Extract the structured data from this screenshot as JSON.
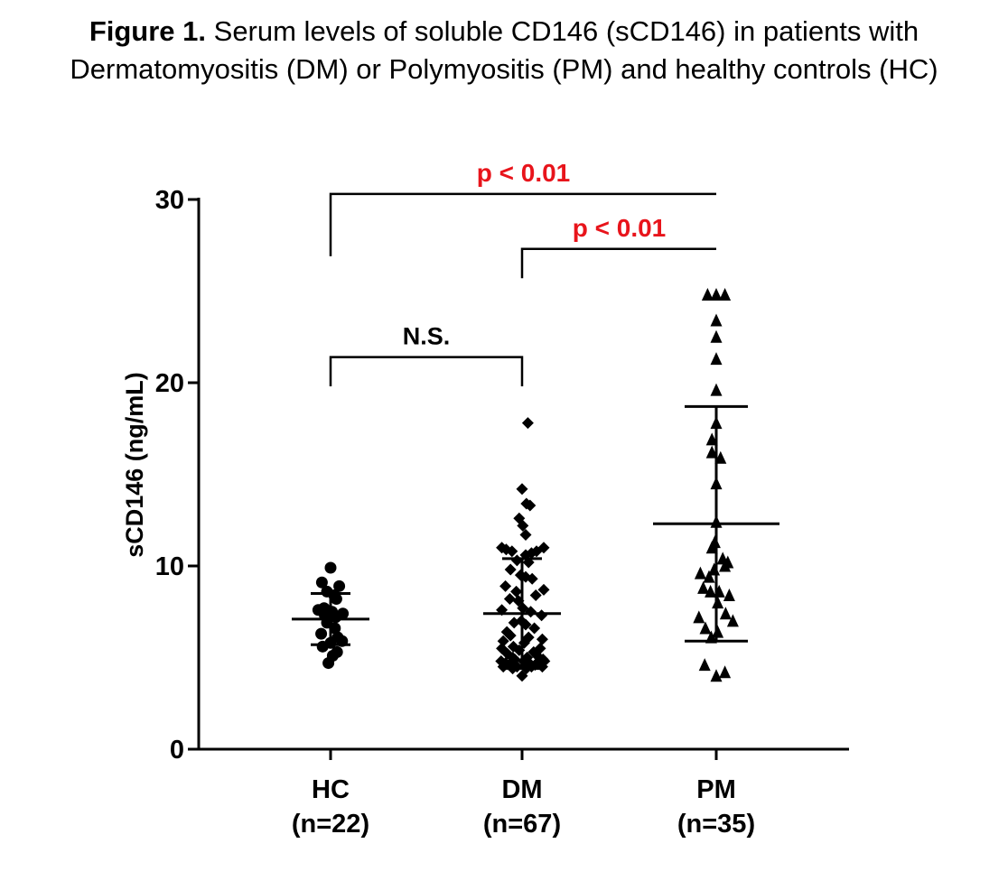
{
  "caption": {
    "label": "Figure 1.",
    "line1": "Serum levels of soluble CD146 (sCD146) in patients with",
    "line2": "Dermatomyositis (DM) or Polymyositis (PM) and healthy controls (HC)"
  },
  "chart_data": {
    "type": "scatter",
    "title": "Serum levels of soluble CD146 (sCD146) in patients with Dermatomyositis (DM) or Polymyositis (PM) and healthy controls (HC)",
    "xlabel": "",
    "ylabel": "sCD146 (ng/mL)",
    "ylim": [
      0,
      30
    ],
    "yticks": [
      "0",
      "10",
      "20",
      "30"
    ],
    "categories": [
      {
        "name": "HC",
        "n_label": "(n=22)"
      },
      {
        "name": "DM",
        "n_label": "(n=67)"
      },
      {
        "name": "PM",
        "n_label": "(n=35)"
      }
    ],
    "series": [
      {
        "name": "HC",
        "marker": "circle",
        "mean": 7.1,
        "sd_low": 5.7,
        "sd_high": 8.5,
        "values": [
          9.9,
          9.1,
          8.9,
          8.6,
          8.4,
          8.2,
          7.7,
          7.6,
          7.5,
          7.4,
          7.3,
          7.2,
          6.9,
          6.6,
          6.3,
          6.1,
          5.9,
          5.8,
          5.6,
          5.3,
          5.1,
          4.7
        ],
        "offsets": [
          0,
          -1.2,
          1.2,
          -0.5,
          0.5,
          0.8,
          -0.9,
          -1.7,
          0.2,
          1.7,
          -0.8,
          0.7,
          -0.5,
          0.6,
          -1.3,
          1.0,
          1.6,
          0.0,
          -1.1,
          0.9,
          0.3,
          -0.3
        ]
      },
      {
        "name": "DM",
        "marker": "diamond",
        "mean": 7.4,
        "sd_low": 4.4,
        "sd_high": 10.4,
        "values": [
          17.8,
          14.2,
          13.4,
          13.3,
          12.6,
          12.2,
          11.7,
          11.0,
          11.0,
          10.9,
          10.8,
          10.8,
          10.7,
          10.6,
          10.3,
          10.2,
          9.8,
          9.5,
          9.4,
          9.3,
          8.9,
          8.7,
          8.6,
          8.4,
          8.2,
          8.1,
          7.7,
          7.6,
          7.5,
          7.3,
          7.0,
          6.9,
          6.8,
          6.6,
          6.4,
          6.2,
          6.1,
          6.0,
          5.9,
          5.8,
          5.6,
          5.5,
          5.5,
          5.4,
          5.3,
          5.2,
          5.1,
          5.0,
          5.0,
          4.9,
          4.9,
          4.8,
          4.8,
          4.8,
          4.7,
          4.7,
          4.7,
          4.6,
          4.6,
          4.6,
          4.5,
          4.5,
          4.5,
          4.5,
          4.4,
          4.4,
          4.0
        ],
        "offsets": [
          0.8,
          0,
          0.6,
          1.1,
          -0.4,
          0.1,
          0.5,
          -2.8,
          3.0,
          -2.2,
          2.0,
          -1.4,
          1.3,
          0.5,
          -0.7,
          0.9,
          -1.6,
          -0.2,
          0.5,
          1.4,
          -2.3,
          3.0,
          -0.8,
          1.9,
          -1.7,
          -0.5,
          0.1,
          -2.8,
          1.2,
          2.7,
          -0.1,
          -1.1,
          0.5,
          1.7,
          -2.1,
          -1.6,
          0.9,
          2.8,
          -2.6,
          0.3,
          -1.2,
          2.5,
          -2.8,
          -0.4,
          1.6,
          -2.0,
          2.1,
          -1.3,
          0.7,
          2.9,
          -1.0,
          -2.9,
          0.2,
          3.1,
          -2.3,
          1.0,
          2.4,
          -1.8,
          0.5,
          1.8,
          -0.7,
          -2.6,
          2.8,
          1.3,
          -1.3,
          0.6,
          0
        ]
      },
      {
        "name": "PM",
        "marker": "triangle",
        "mean": 12.3,
        "sd_low": 5.9,
        "sd_high": 18.7,
        "values": [
          24.8,
          24.8,
          24.8,
          23.4,
          22.5,
          21.3,
          19.6,
          17.8,
          16.9,
          16.2,
          15.9,
          14.5,
          12.4,
          11.3,
          11.0,
          10.4,
          10.2,
          10.0,
          9.8,
          9.6,
          9.4,
          8.8,
          8.6,
          8.6,
          8.4,
          8.0,
          7.4,
          7.2,
          7.0,
          6.6,
          6.4,
          6.1,
          4.6,
          4.2,
          4.0
        ],
        "offsets": [
          -1.2,
          0,
          1.2,
          0,
          0,
          0,
          0,
          0,
          -0.6,
          -0.6,
          0.6,
          0,
          0,
          -0.2,
          -0.6,
          0.9,
          1.6,
          1.2,
          -0.3,
          -2.2,
          -1.0,
          -1.8,
          0.4,
          -0.8,
          1.8,
          0.2,
          1.3,
          -2.4,
          2.3,
          -1.5,
          0.2,
          -0.7,
          -1.6,
          1.2,
          0.0
        ]
      }
    ],
    "comparisons": [
      {
        "pair": [
          "HC",
          "DM"
        ],
        "label": "N.S.",
        "color": "#000000",
        "y": 21.4,
        "drop_left": 19.8,
        "drop_right": 19.8
      },
      {
        "pair": [
          "DM",
          "PM"
        ],
        "label": "p < 0.01",
        "color": "#e8141b",
        "y": 27.3,
        "drop_left": 25.7,
        "drop_right": 27.3
      },
      {
        "pair": [
          "HC",
          "PM"
        ],
        "label": "p < 0.01",
        "color": "#e8141b",
        "y": 30.3,
        "drop_left": 26.9,
        "drop_right": 30.3
      }
    ]
  }
}
